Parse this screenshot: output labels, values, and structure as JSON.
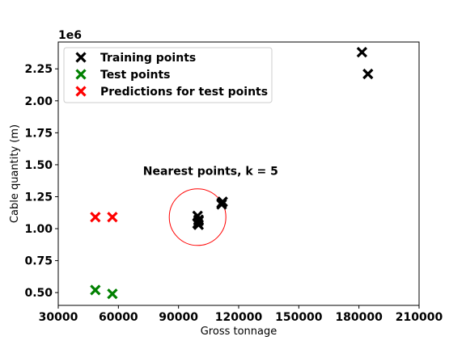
{
  "chart_data": {
    "type": "scatter",
    "xlabel": "Gross tonnage",
    "ylabel": "Cable quantity (m)",
    "y_offset_label": "1e6",
    "xlim": [
      30000,
      210000
    ],
    "ylim": [
      400000,
      2460000
    ],
    "x_ticks": [
      30000,
      60000,
      90000,
      120000,
      150000,
      180000,
      210000
    ],
    "x_tick_labels": [
      "30000",
      "60000",
      "90000",
      "120000",
      "150000",
      "180000",
      "210000"
    ],
    "y_ticks": [
      500000,
      750000,
      1000000,
      1250000,
      1500000,
      1750000,
      2000000,
      2250000
    ],
    "y_tick_labels": [
      "0.50",
      "0.75",
      "1.00",
      "1.25",
      "1.50",
      "1.75",
      "2.00",
      "2.25"
    ],
    "legend_position": "top-left",
    "series": [
      {
        "name": "Training points",
        "color": "#000000",
        "marker": "x",
        "x": [
          181500,
          184500,
          111500,
          112000,
          111500,
          99500,
          100000,
          100000,
          99500,
          100000
        ],
        "y": [
          2380000,
          2210000,
          1190000,
          1210000,
          1200000,
          1100000,
          1060000,
          1030000,
          1040000,
          1070000
        ]
      },
      {
        "name": "Test points",
        "color": "#008000",
        "marker": "x",
        "x": [
          48500,
          57000
        ],
        "y": [
          520000,
          490000
        ]
      },
      {
        "name": "Predictions for test points",
        "color": "#ff0000",
        "marker": "x",
        "x": [
          48500,
          57000
        ],
        "y": [
          1090000,
          1090000
        ]
      }
    ],
    "annotation": {
      "text": "Nearest points, k = 5",
      "x": 106000,
      "y": 1420000
    },
    "circle": {
      "center_x": 99500,
      "center_y": 1090000,
      "color": "#ff0000"
    }
  }
}
